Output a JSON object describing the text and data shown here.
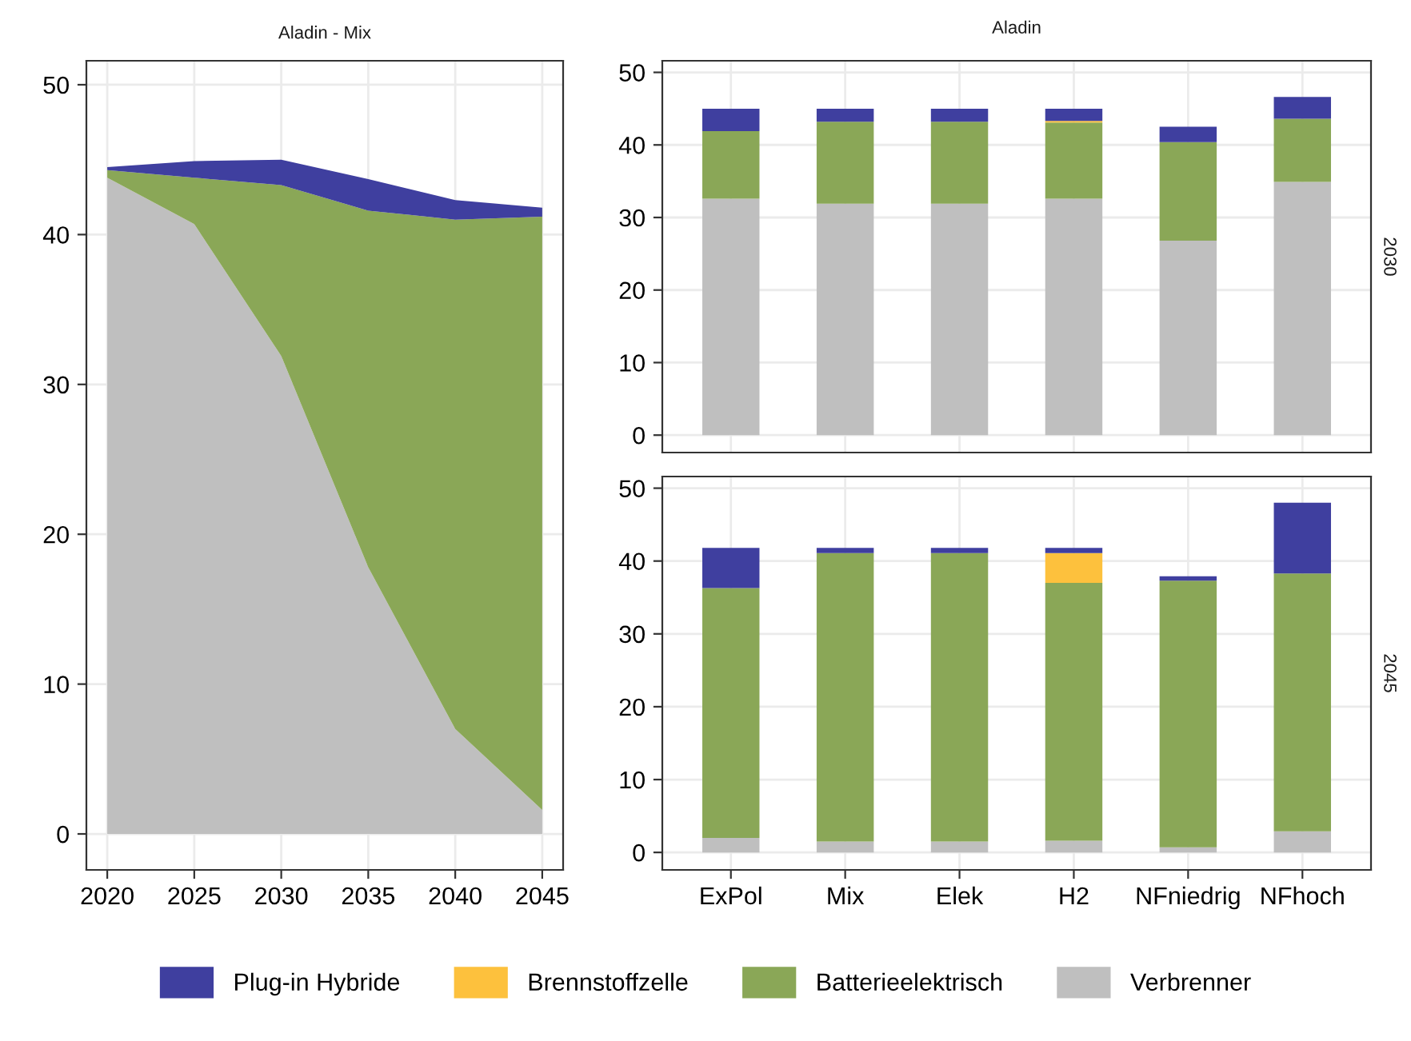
{
  "chart_data": [
    {
      "type": "area",
      "stacked": true,
      "title": "Aladin - Mix",
      "x": [
        2020,
        2025,
        2030,
        2035,
        2040,
        2045
      ],
      "xlim": [
        2018.8,
        2046.2
      ],
      "xticks": [
        2020,
        2025,
        2030,
        2035,
        2040,
        2045
      ],
      "ylim": [
        -2.4,
        51.6
      ],
      "yticks": [
        0,
        10,
        20,
        30,
        40,
        50
      ],
      "grid": true,
      "legend": false,
      "series": [
        {
          "color": "#bfbfbf",
          "values": [
            43.8,
            40.7,
            31.9,
            17.8,
            7.0,
            1.6
          ]
        },
        {
          "color": "#8aa757",
          "values": [
            0.5,
            3.1,
            11.4,
            23.8,
            34.0,
            39.6
          ]
        },
        {
          "color": "#3f3f9f",
          "values": [
            0.2,
            1.1,
            1.7,
            2.1,
            1.3,
            0.6
          ]
        }
      ]
    },
    {
      "type": "bar",
      "stacked": true,
      "title": "Aladin",
      "annotations": [
        "2030"
      ],
      "categories": [
        null,
        null,
        null,
        null,
        null,
        null
      ],
      "ylim": [
        -2.4,
        51.6
      ],
      "yticks": [
        0,
        10,
        20,
        30,
        40,
        50
      ],
      "grid": true,
      "legend": false,
      "tick_labels": "y",
      "series": [
        {
          "color": "#bfbfbf",
          "values": [
            32.6,
            31.9,
            31.9,
            32.6,
            26.8,
            34.9
          ]
        },
        {
          "color": "#8aa757",
          "values": [
            9.3,
            11.3,
            11.3,
            10.5,
            13.6,
            8.7
          ]
        },
        {
          "color": "#fdc13d",
          "values": [
            0,
            0,
            0,
            0.2,
            0,
            0
          ]
        },
        {
          "color": "#3f3f9f",
          "values": [
            3.1,
            1.8,
            1.8,
            1.7,
            2.1,
            3.0
          ]
        }
      ]
    },
    {
      "type": "bar",
      "stacked": true,
      "annotations": [
        "2045"
      ],
      "categories": [
        "ExPol",
        "Mix",
        "Elek",
        "H2",
        "NFniedrig",
        "NFhoch"
      ],
      "ylim": [
        -2.4,
        51.6
      ],
      "yticks": [
        0,
        10,
        20,
        30,
        40,
        50
      ],
      "grid": true,
      "legend": "bottom",
      "series": [
        {
          "name": "Verbrenner",
          "color": "#bfbfbf",
          "values": [
            2.0,
            1.5,
            1.5,
            1.6,
            0.7,
            2.9
          ]
        },
        {
          "name": "Batterieelektrisch",
          "color": "#8aa757",
          "values": [
            34.3,
            39.6,
            39.6,
            35.4,
            36.6,
            35.4
          ]
        },
        {
          "name": "Brennstoffzelle",
          "color": "#fdc13d",
          "values": [
            0,
            0,
            0,
            4.1,
            0,
            0
          ]
        },
        {
          "name": "Plug-in Hybride",
          "color": "#3f3f9f",
          "values": [
            5.5,
            0.7,
            0.7,
            0.7,
            0.6,
            9.7
          ]
        }
      ]
    }
  ]
}
